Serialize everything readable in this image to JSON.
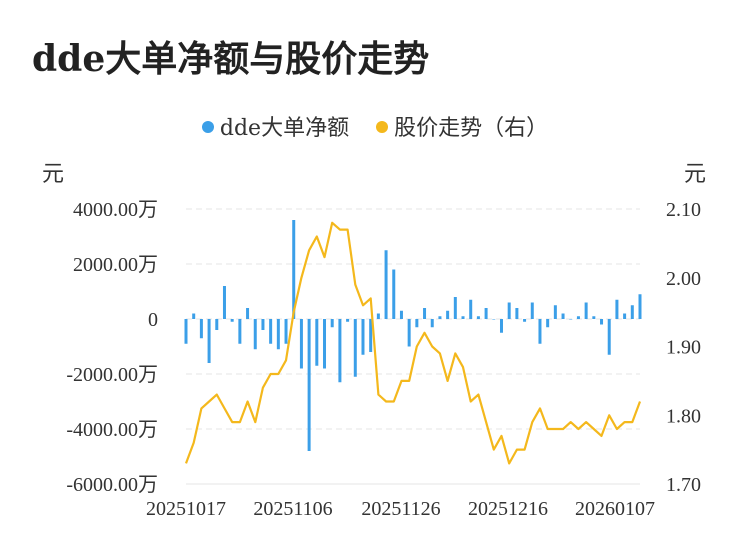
{
  "title": "dde大单净额与股价走势",
  "legend": {
    "series1": "dde大单净额",
    "series2": "股价走势（右）"
  },
  "units": {
    "left": "元",
    "right": "元"
  },
  "colors": {
    "bar": "#3b9fe8",
    "line": "#f4b81c",
    "grid": "#e6e6e6"
  },
  "chart_data": {
    "type": "bar+line",
    "x_ticks": [
      "20251017",
      "20251106",
      "20251126",
      "20251216",
      "20260107"
    ],
    "y_left": {
      "ticks": [
        "4000.00万",
        "2000.00万",
        "0",
        "-2000.00万",
        "-4000.00万",
        "-6000.00万"
      ],
      "ylim": [
        -6000,
        4000
      ]
    },
    "y_right": {
      "ticks": [
        "2.10",
        "2.00",
        "1.90",
        "1.80",
        "1.70"
      ],
      "ylim": [
        1.7,
        2.1
      ]
    },
    "series": [
      {
        "name": "dde大单净额",
        "type": "bar",
        "unit": "万",
        "values": [
          -900,
          200,
          -700,
          -1600,
          -400,
          1200,
          -100,
          -900,
          400,
          -1100,
          -400,
          -900,
          -1100,
          -900,
          3600,
          -1800,
          -4800,
          -1700,
          -1800,
          -300,
          -2300,
          -100,
          -2100,
          -1300,
          -1200,
          200,
          2500,
          1800,
          300,
          -1000,
          -300,
          400,
          -300,
          100,
          300,
          800,
          100,
          700,
          100,
          400,
          0,
          -500,
          600,
          400,
          -100,
          600,
          -900,
          -300,
          500,
          200,
          0,
          100,
          600,
          100,
          -200,
          -1300,
          700,
          200,
          500,
          900
        ]
      },
      {
        "name": "股价走势（右）",
        "type": "line",
        "values": [
          1.73,
          1.76,
          1.81,
          1.82,
          1.83,
          1.81,
          1.79,
          1.79,
          1.82,
          1.79,
          1.84,
          1.86,
          1.86,
          1.88,
          1.95,
          2.0,
          2.04,
          2.06,
          2.03,
          2.08,
          2.07,
          2.07,
          1.99,
          1.96,
          1.97,
          1.83,
          1.82,
          1.82,
          1.85,
          1.85,
          1.9,
          1.92,
          1.9,
          1.89,
          1.85,
          1.89,
          1.87,
          1.82,
          1.83,
          1.79,
          1.75,
          1.77,
          1.73,
          1.75,
          1.75,
          1.79,
          1.81,
          1.78,
          1.78,
          1.78,
          1.79,
          1.78,
          1.79,
          1.78,
          1.77,
          1.8,
          1.78,
          1.79,
          1.79,
          1.82
        ]
      }
    ]
  }
}
